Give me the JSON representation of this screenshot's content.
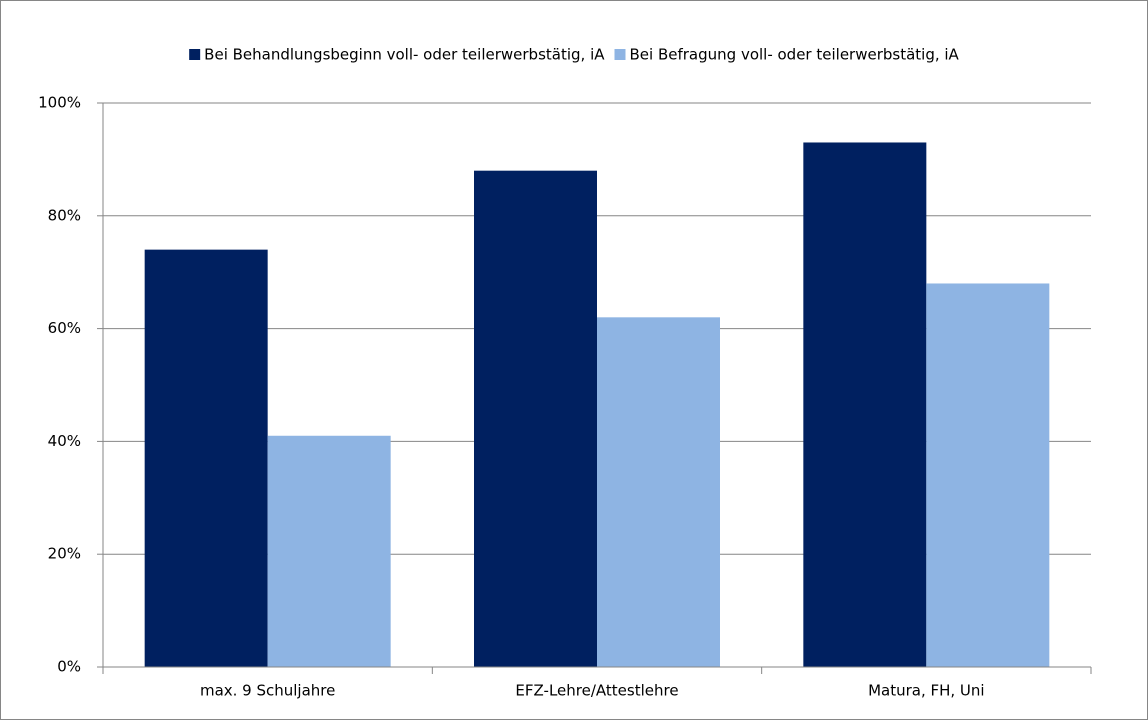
{
  "chart_data": {
    "type": "bar",
    "categories": [
      "max. 9 Schuljahre",
      "EFZ-Lehre/Attestlehre",
      "Matura, FH, Uni"
    ],
    "series": [
      {
        "name": "Bei Behandlungsbeginn voll- oder teilerwerbstätig, iA",
        "color": "#002060",
        "values": [
          74,
          88,
          93
        ]
      },
      {
        "name": "Bei Befragung voll- oder teilerwerbstätig, iA",
        "color": "#8eb4e3",
        "values": [
          41,
          62,
          68
        ]
      }
    ],
    "ylim": [
      0,
      100
    ],
    "yticks": [
      {
        "value": 0,
        "label": "0%"
      },
      {
        "value": 20,
        "label": "20%"
      },
      {
        "value": 40,
        "label": "40%"
      },
      {
        "value": 60,
        "label": "60%"
      },
      {
        "value": 80,
        "label": "80%"
      },
      {
        "value": 100,
        "label": "100%"
      }
    ],
    "grid": true,
    "legend": "top"
  }
}
